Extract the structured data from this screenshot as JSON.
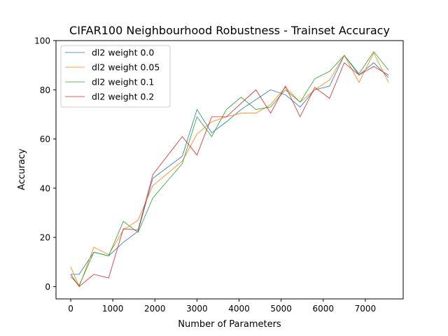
{
  "chart_data": {
    "type": "line",
    "title": "CIFAR100 Neighbourhood Robustness - Trainset Accuracy",
    "xlabel": "Number of Parameters",
    "ylabel": "Accuracy",
    "xlim": [
      -350,
      7900
    ],
    "ylim": [
      -5,
      100
    ],
    "xticks": [
      0,
      1000,
      2000,
      3000,
      4000,
      5000,
      6000,
      7000
    ],
    "yticks": [
      0,
      20,
      40,
      60,
      80,
      100
    ],
    "grid": false,
    "legend_position": "top-left",
    "x": [
      0,
      200,
      550,
      900,
      1250,
      1600,
      1950,
      2650,
      3000,
      3350,
      3700,
      4050,
      4400,
      4750,
      5100,
      5450,
      5800,
      6150,
      6500,
      6850,
      7200,
      7550
    ],
    "series": [
      {
        "name": "dl2 weight 0.0",
        "color": "#1f77b4",
        "values": [
          5,
          5,
          14,
          12.5,
          18,
          22.5,
          44,
          53,
          72,
          62.5,
          67,
          72,
          76,
          80,
          78,
          73,
          80,
          81.5,
          94,
          86,
          91,
          85
        ]
      },
      {
        "name": "dl2 weight 0.05",
        "color": "#ff7f0e",
        "values": [
          8,
          0,
          16,
          13,
          23,
          27,
          41,
          51,
          62,
          67,
          69,
          70.5,
          70.5,
          74,
          81,
          75,
          80,
          84,
          94,
          83,
          95,
          83
        ]
      },
      {
        "name": "dl2 weight 0.1",
        "color": "#2ca02c",
        "values": [
          4,
          0.5,
          14,
          12.5,
          26.5,
          22,
          36,
          50,
          69,
          61,
          72,
          77,
          72,
          73,
          80,
          75,
          84.5,
          87.5,
          94,
          86.5,
          95.5,
          88
        ]
      },
      {
        "name": "dl2 weight 0.2",
        "color": "#d62728",
        "values": [
          5,
          0,
          5,
          3.5,
          23.5,
          23,
          45.5,
          61,
          53.5,
          69,
          69,
          74.5,
          80,
          70.5,
          81.5,
          69,
          81,
          76.5,
          91,
          86,
          89.5,
          86
        ]
      }
    ]
  }
}
